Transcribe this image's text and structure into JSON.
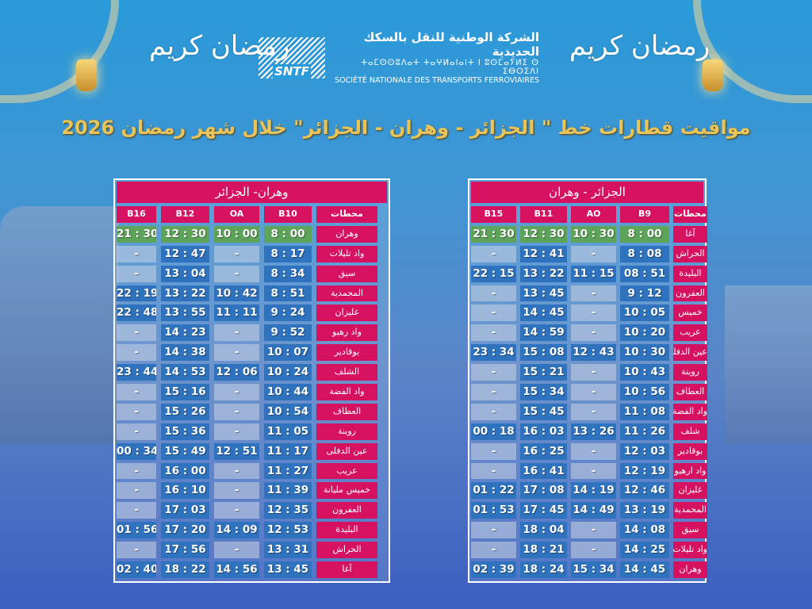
{
  "header": {
    "ramadan_calligraphy": "رمضان كريم",
    "logo": {
      "mark": "SNTF",
      "arabic": "الشركة الوطنية للنقل بالسكك الحديدية",
      "tifinagh": "ⵜⴰⵎⵙⵙⵓⴷⴰⵜ ⵜⴰⵖⵍⴰⵏⴰⵏⵜ ⵏ ⵓⵙⵎⴰⵢⵍⵉ ⵙ ⵉⴱⵔⵉⴷⵏ",
      "french": "SOCIÉTÉ NATIONALE DES TRANSPORTS FERROVIAIRES"
    },
    "title": "مواقيت قطارات خط \" الجزائر - وهران - الجزائر\" خلال شهر رمضان 2026"
  },
  "tables": [
    {
      "title": "وهران- الجزائر",
      "station_header": "محطات",
      "trains": [
        "B16",
        "B12",
        "OA",
        "B10"
      ],
      "rows": [
        {
          "station": "وهران",
          "times": [
            "21 : 30",
            "12 : 30",
            "10 : 00",
            "8 : 00"
          ]
        },
        {
          "station": "واد تليلات",
          "times": [
            "-",
            "12 : 47",
            "-",
            "8 : 17"
          ]
        },
        {
          "station": "سيق",
          "times": [
            "-",
            "13 : 04",
            "-",
            "8 : 34"
          ]
        },
        {
          "station": "المحمدية",
          "times": [
            "22 : 19",
            "13 : 22",
            "10 : 42",
            "8 : 51"
          ]
        },
        {
          "station": "غليزان",
          "times": [
            "22 : 48",
            "13 : 55",
            "11 : 11",
            "9 : 24"
          ]
        },
        {
          "station": "واد رهيو",
          "times": [
            "-",
            "14 : 23",
            "-",
            "9 : 52"
          ]
        },
        {
          "station": "بوقادير",
          "times": [
            "-",
            "14 : 38",
            "-",
            "10 : 07"
          ]
        },
        {
          "station": "الشلف",
          "times": [
            "23 : 44",
            "14 : 53",
            "12 : 06",
            "10 : 24"
          ]
        },
        {
          "station": "واد الفضة",
          "times": [
            "-",
            "15 : 16",
            "-",
            "10 : 44"
          ]
        },
        {
          "station": "العطاف",
          "times": [
            "-",
            "15 : 26",
            "-",
            "10 : 54"
          ]
        },
        {
          "station": "روينة",
          "times": [
            "-",
            "15 : 36",
            "-",
            "11 : 05"
          ]
        },
        {
          "station": "عين الدفلى",
          "times": [
            "00 : 34",
            "15 : 49",
            "12 : 51",
            "11 : 17"
          ]
        },
        {
          "station": "عريب",
          "times": [
            "-",
            "16 : 00",
            "-",
            "11 : 27"
          ]
        },
        {
          "station": "خميس مليانة",
          "times": [
            "-",
            "16 : 10",
            "-",
            "11 : 39"
          ]
        },
        {
          "station": "العفرون",
          "times": [
            "-",
            "17 : 03",
            "-",
            "12 : 35"
          ]
        },
        {
          "station": "البليدة",
          "times": [
            "01 : 56",
            "17 : 20",
            "14 : 09",
            "12 : 53"
          ]
        },
        {
          "station": "الحراش",
          "times": [
            "-",
            "17 : 56",
            "-",
            "13 : 31"
          ]
        },
        {
          "station": "آغا",
          "times": [
            "02 : 40",
            "18 : 22",
            "14 : 56",
            "13 : 45"
          ]
        }
      ]
    },
    {
      "title": "الجزائر - وهران",
      "station_header": "محطات",
      "trains": [
        "B15",
        "B11",
        "AO",
        "B9"
      ],
      "rows": [
        {
          "station": "آغا",
          "times": [
            "21 : 30",
            "12 : 30",
            "10 : 30",
            "8 : 00"
          ]
        },
        {
          "station": "الحراش",
          "times": [
            "-",
            "12 : 41",
            "-",
            "8 : 08"
          ]
        },
        {
          "station": "البليدة",
          "times": [
            "22 : 15",
            "13 : 22",
            "11 : 15",
            "08 : 51"
          ]
        },
        {
          "station": "العفرون",
          "times": [
            "-",
            "13 : 45",
            "-",
            "9 : 12"
          ]
        },
        {
          "station": "خميس",
          "times": [
            "-",
            "14 : 45",
            "-",
            "10 : 05"
          ]
        },
        {
          "station": "عريب",
          "times": [
            "-",
            "14 : 59",
            "-",
            "10 : 20"
          ]
        },
        {
          "station": "عين الدفلى",
          "times": [
            "23 : 34",
            "15 : 08",
            "12 : 43",
            "10 : 30"
          ]
        },
        {
          "station": "روينة",
          "times": [
            "-",
            "15 : 21",
            "-",
            "10 : 43"
          ]
        },
        {
          "station": "العطاف",
          "times": [
            "-",
            "15 : 34",
            "-",
            "10 : 56"
          ]
        },
        {
          "station": "واد الفضة",
          "times": [
            "-",
            "15 : 45",
            "-",
            "11 : 08"
          ]
        },
        {
          "station": "شلف",
          "times": [
            "00 : 18",
            "16 : 03",
            "13 : 26",
            "11 : 26"
          ]
        },
        {
          "station": "بوقادير",
          "times": [
            "-",
            "16 : 25",
            "-",
            "12 : 03"
          ]
        },
        {
          "station": "واد ارهيو",
          "times": [
            "-",
            "16 : 41",
            "-",
            "12 : 19"
          ]
        },
        {
          "station": "غليزان",
          "times": [
            "01 : 22",
            "17 : 08",
            "14 : 19",
            "12 : 46"
          ]
        },
        {
          "station": "المحمدية",
          "times": [
            "01 : 53",
            "17 : 45",
            "14 : 49",
            "13 : 19"
          ]
        },
        {
          "station": "سيق",
          "times": [
            "-",
            "18 : 04",
            "-",
            "14 : 08"
          ]
        },
        {
          "station": "واد تليلات",
          "times": [
            "-",
            "18 : 21",
            "-",
            "14 : 25"
          ]
        },
        {
          "station": "وهران",
          "times": [
            "02 : 39",
            "18 : 24",
            "15 : 34",
            "14 : 45"
          ]
        }
      ]
    }
  ],
  "colors": {
    "header_pink": "#d6115f",
    "departure_green": "#5ea35a",
    "time_blue": "#2f72be",
    "title_gold": "#e8c45a"
  }
}
